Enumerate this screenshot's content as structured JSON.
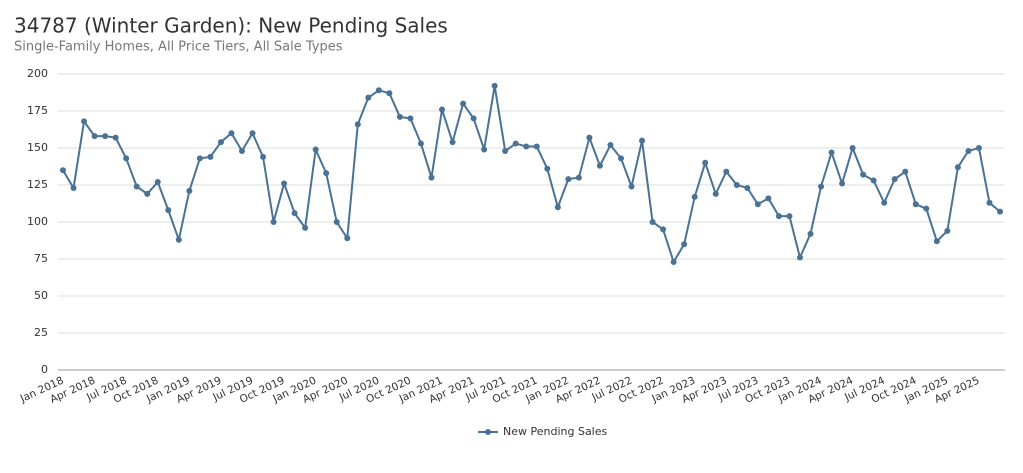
{
  "chart_data": {
    "type": "line",
    "title": "34787 (Winter Garden): New Pending Sales",
    "subtitle": "Single-Family Homes, All Price Tiers, All Sale Types",
    "categories": [
      "Jan 2018",
      null,
      null,
      "Apr 2018",
      null,
      null,
      "Jul 2018",
      null,
      null,
      "Oct 2018",
      null,
      null,
      "Jan 2019",
      null,
      null,
      "Apr 2019",
      null,
      null,
      "Jul 2019",
      null,
      null,
      "Oct 2019",
      null,
      null,
      "Jan 2020",
      null,
      null,
      "Apr 2020",
      null,
      null,
      "Jul 2020",
      null,
      null,
      "Oct 2020",
      null,
      null,
      "Jan 2021",
      null,
      null,
      "Apr 2021",
      null,
      null,
      "Jul 2021",
      null,
      null,
      "Oct 2021",
      null,
      null,
      "Jan 2022",
      null,
      null,
      "Apr 2022",
      null,
      null,
      "Jul 2022",
      null,
      null,
      "Oct 2022",
      null,
      null,
      "Jan 2023",
      null,
      null,
      "Apr 2023",
      null,
      null,
      "Jul 2023",
      null,
      null,
      "Oct 2023",
      null,
      null,
      "Jan 2024",
      null,
      null,
      "Apr 2024",
      null,
      null,
      "Jul 2024",
      null,
      null,
      "Oct 2024",
      null,
      null,
      "Jan 2025",
      null,
      null,
      "Apr 2025",
      null,
      null
    ],
    "series": [
      {
        "name": "New Pending Sales",
        "color": "#4a7294",
        "values": [
          135,
          123,
          168,
          158,
          158,
          157,
          143,
          124,
          119,
          127,
          108,
          88,
          121,
          143,
          144,
          154,
          160,
          148,
          160,
          144,
          100,
          126,
          106,
          96,
          149,
          133,
          100,
          89,
          166,
          184,
          189,
          187,
          171,
          170,
          153,
          130,
          176,
          154,
          180,
          170,
          149,
          192,
          148,
          153,
          151,
          151,
          136,
          110,
          129,
          130,
          157,
          138,
          152,
          143,
          124,
          155,
          100,
          95,
          73,
          85,
          117,
          140,
          119,
          134,
          125,
          123,
          112,
          116,
          104,
          104,
          76,
          92,
          124,
          147,
          126,
          150,
          132,
          128,
          113,
          129,
          134,
          112,
          109,
          87,
          94,
          137,
          148,
          150,
          113,
          107
        ]
      }
    ],
    "ylim": [
      0,
      200
    ],
    "yticks": [
      0,
      25,
      50,
      75,
      100,
      125,
      150,
      175,
      200
    ],
    "grid": true,
    "legend": "bottom"
  }
}
